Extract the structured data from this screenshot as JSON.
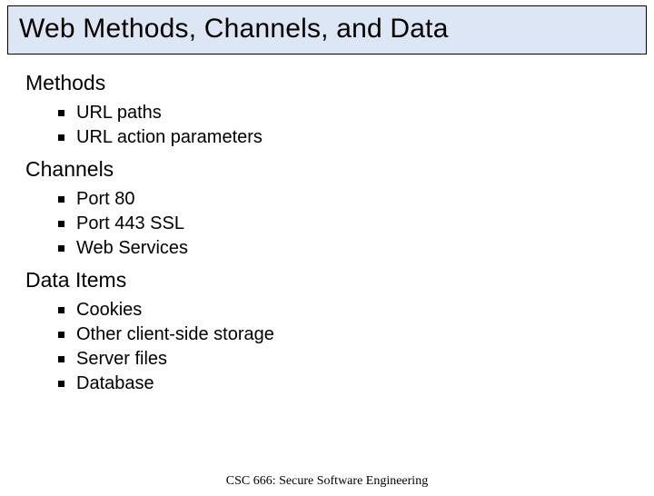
{
  "title": "Web Methods, Channels, and Data",
  "sections": [
    {
      "heading": "Methods",
      "items": [
        "URL paths",
        "URL action parameters"
      ]
    },
    {
      "heading": "Channels",
      "items": [
        "Port 80",
        "Port 443 SSL",
        "Web Services"
      ]
    },
    {
      "heading": "Data Items",
      "items": [
        "Cookies",
        "Other client-side storage",
        "Server files",
        "Database"
      ]
    }
  ],
  "footer": "CSC 666: Secure Software Engineering",
  "style": {
    "title_bg": "#dde6f4",
    "title_border": "#000000",
    "title_fontsize": 30,
    "heading_fontsize": 23,
    "item_fontsize": 20,
    "footer_fontsize": 14,
    "bullet_color": "#000000",
    "background": "#ffffff"
  }
}
